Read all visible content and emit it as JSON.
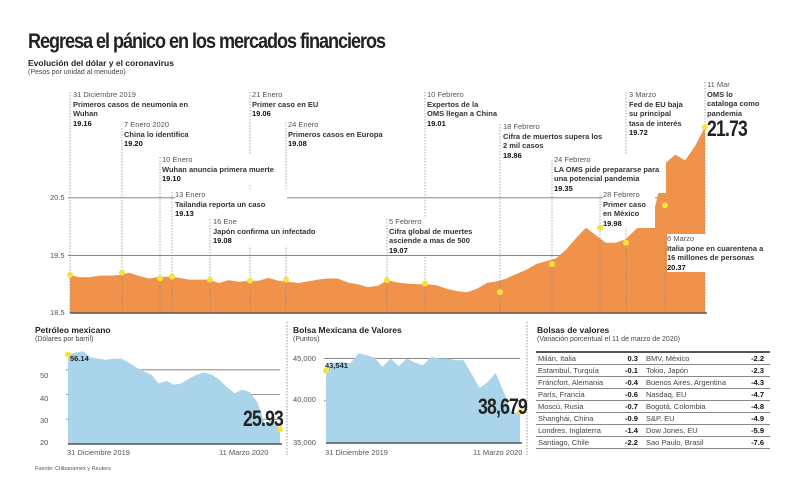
{
  "title": "Regresa el pánico en los mercados financieros",
  "main": {
    "subtitle": "Evolución del dólar y el coronavirus",
    "unit": "(Pesos por unidad al menudeo)"
  },
  "events": [
    {
      "date": "31 Diciembre 2019",
      "text": "Primeros casos de neumonía en Wuhan",
      "value": "19.16"
    },
    {
      "date": "7 Enero 2020",
      "text": "China lo identifica",
      "value": "19.20"
    },
    {
      "date": "10 Enero",
      "text": "Wuhan anuncia primera muerte",
      "value": "19.10"
    },
    {
      "date": "13 Enero",
      "text": "Tailandia reporta un caso",
      "value": "19.13"
    },
    {
      "date": "16 Ene",
      "text": "Japón confirma un infectado",
      "value": "19.08"
    },
    {
      "date": "21 Enero",
      "text": "Primer caso en EU",
      "value": "19.06"
    },
    {
      "date": "24 Enero",
      "text": "Primeros casos en Europa",
      "value": "19.08"
    },
    {
      "date": "5 Febrero",
      "text": "Cifra global de muertes asciende a mas de 500",
      "value": "19.07"
    },
    {
      "date": "10 Febrero",
      "text": "Expertos de la OMS llegan a China",
      "value": "19.01"
    },
    {
      "date": "18 Febrero",
      "text": "Cifra de muertos supera los 2 mil casos",
      "value": "18.86"
    },
    {
      "date": "24 Febrero",
      "text": "LA OMS pide prepararse para una potencial pandemia",
      "value": "19.35"
    },
    {
      "date": "28 Febrero",
      "text": "Primer caso en México",
      "value": "19.98"
    },
    {
      "date": "3 Marzo",
      "text": "Fed de EU baja su principal tasa de interés",
      "value": "19.72"
    },
    {
      "date": "6 Marzo",
      "text": "Italia pone en cuarentena a 16 millones de personas",
      "value": "20.37"
    },
    {
      "date": "11 Mar",
      "text": "OMS lo cataloga como pandemia",
      "value": "21.73"
    }
  ],
  "chart_data": [
    {
      "type": "area",
      "title": "Evolución del dólar y el coronavirus",
      "ylabel": "Pesos por unidad al menudeo",
      "ylim": [
        18.5,
        21.9
      ],
      "yticks": [
        "18.5",
        "19.5",
        "20.5"
      ],
      "x_range": [
        "31 Diciembre 2019",
        "11 Marzo 2020"
      ],
      "values": [
        19.16,
        19.12,
        19.12,
        19.15,
        19.15,
        19.16,
        19.2,
        19.14,
        19.1,
        19.13,
        19.13,
        19.11,
        19.08,
        19.08,
        19.08,
        19.02,
        19.07,
        19.04,
        19.06,
        19.06,
        19.11,
        19.06,
        19.04,
        19.02,
        19.05,
        19.08,
        19.1,
        19.1,
        19.03,
        19.0,
        18.95,
        18.97,
        19.07,
        19.03,
        19.01,
        19.0,
        19.0,
        18.98,
        18.92,
        18.88,
        18.86,
        18.92,
        19.02,
        19.05,
        19.1,
        19.18,
        19.25,
        19.35,
        19.4,
        19.45,
        19.6,
        19.8,
        19.98,
        19.85,
        19.72,
        19.72,
        19.78,
        19.95,
        20.1,
        20.37,
        21.1,
        21.25,
        21.15,
        21.4,
        21.73
      ],
      "color": "#f0924a"
    },
    {
      "type": "area",
      "title": "Petróleo mexicano",
      "ylabel": "Dólares por barril",
      "ylim": [
        20,
        58
      ],
      "yticks": [
        "20",
        "30",
        "40",
        "50"
      ],
      "xticks": [
        "31 Diciembre 2019",
        "11 Marzo 2020"
      ],
      "start_label": "56.14",
      "end_label": "25.93",
      "values": [
        56.14,
        57,
        57.5,
        55,
        54.5,
        54,
        54.5,
        54.5,
        53,
        51,
        49.5,
        48,
        44.5,
        45.5,
        44,
        44.5,
        46.5,
        48,
        49,
        48,
        46,
        43,
        40.5,
        42,
        41,
        37,
        28,
        30,
        25.93
      ],
      "color": "#a9d4ea"
    },
    {
      "type": "area",
      "title": "Bolsa Mexicana de Valores",
      "ylabel": "Puntos",
      "ylim": [
        35000,
        46000
      ],
      "yticks": [
        "35,000",
        "40,000",
        "45,000"
      ],
      "xticks": [
        "31 Diciembre 2019",
        "11 Marzo 2020"
      ],
      "start_label": "43,541",
      "end_label": "38,679",
      "values": [
        43541,
        44500,
        44600,
        44400,
        45600,
        45400,
        45100,
        44000,
        45000,
        44100,
        45000,
        44500,
        44200,
        45200,
        45000,
        45000,
        44800,
        44800,
        43200,
        41500,
        42200,
        43300,
        41000,
        38500,
        38679
      ],
      "color": "#a9d4ea"
    }
  ],
  "stocks": {
    "title": "Bolsas de valores",
    "subtitle": "(Variación porcentual el 11 de marzo de 2020)",
    "rows": [
      [
        "Milán, Italia",
        "0.3",
        "BMV, México",
        "-2.2"
      ],
      [
        "Estambul, Turquía",
        "-0.1",
        "Tokio, Japón",
        "-2.3"
      ],
      [
        "Fráncfort, Alemania",
        "-0.4",
        "Buenos Aires, Argentina",
        "-4.3"
      ],
      [
        "París, Francia",
        "-0.6",
        "Nasdaq, EU",
        "-4.7"
      ],
      [
        "Moscú, Rusia",
        "-0.7",
        "Bogotá, Colombia",
        "-4.8"
      ],
      [
        "Shanghái, China",
        "-0.9",
        "S&P, EU",
        "-4.9"
      ],
      [
        "Londres, Inglaterra",
        "-1.4",
        "Dow Jones, EU",
        "-5.9"
      ],
      [
        "Santiago, Chile",
        "-2.2",
        "Sao Paulo, Brasil",
        "-7.6"
      ]
    ]
  },
  "source": "Fuente: Citibanamex y Reuters"
}
